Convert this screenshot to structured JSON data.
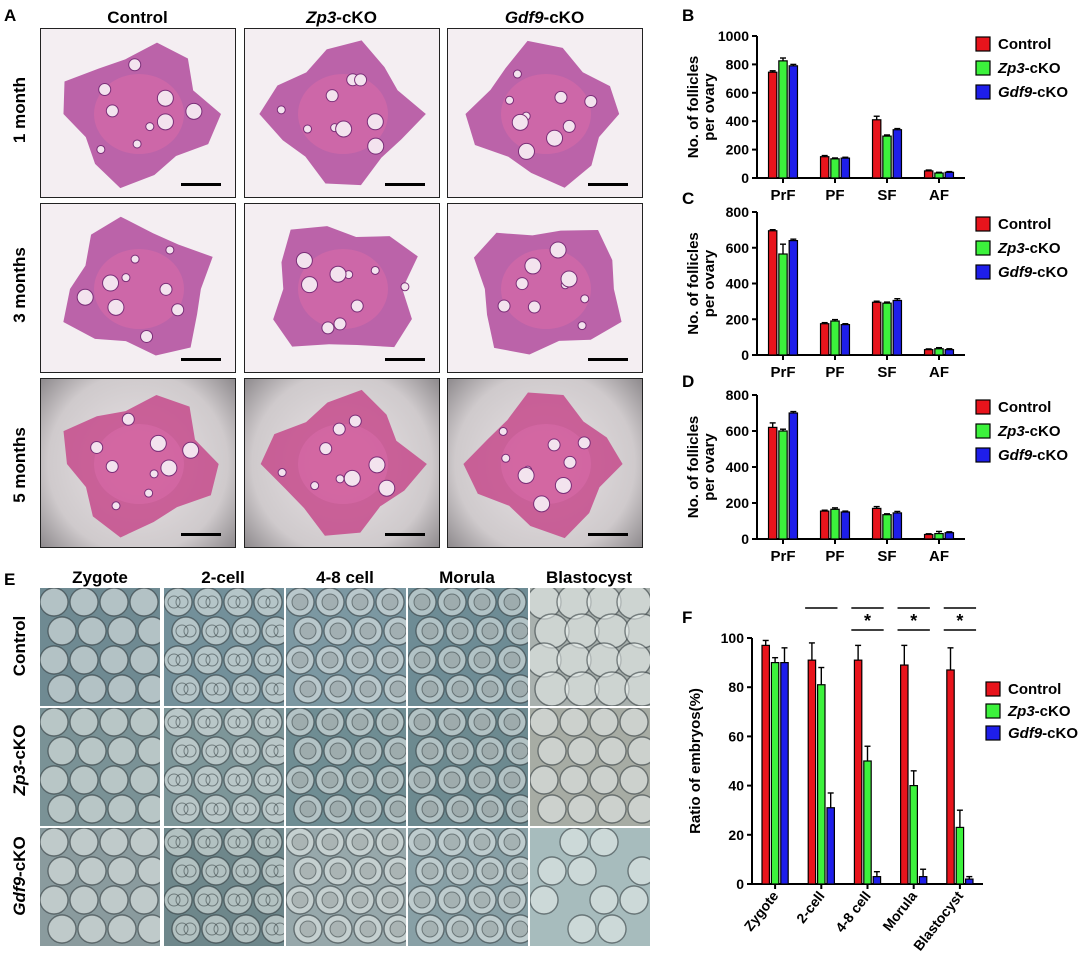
{
  "panels": {
    "A": "A",
    "B": "B",
    "C": "C",
    "D": "D",
    "E": "E",
    "F": "F"
  },
  "histology": {
    "columns": [
      {
        "italic": "",
        "rest": "Control"
      },
      {
        "italic": "Zp3",
        "rest": "-cKO"
      },
      {
        "italic": "Gdf9",
        "rest": "-cKO"
      }
    ],
    "rows": [
      "1 month",
      "3 months",
      "5 months"
    ]
  },
  "embryos": {
    "columns": [
      "Zygote",
      "2-cell",
      "4-8 cell",
      "Morula",
      "Blastocyst"
    ],
    "rows": [
      {
        "italic": "",
        "rest": "Control"
      },
      {
        "italic": "Zp3",
        "rest": "-cKO"
      },
      {
        "italic": "Gdf9",
        "rest": "-cKO"
      }
    ]
  },
  "legend": [
    {
      "italic": "",
      "rest": "Control",
      "color": "#e8141c"
    },
    {
      "italic": "Zp3",
      "rest": "-cKO",
      "color": "#3cf23c"
    },
    {
      "italic": "Gdf9",
      "rest": "-cKO",
      "color": "#1e1eea"
    }
  ],
  "chart_data": [
    {
      "panel": "B",
      "type": "bar",
      "categories": [
        "PrF",
        "PF",
        "SF",
        "AF"
      ],
      "ylabel": "No. of follicles per ovary",
      "ylim": [
        0,
        1000
      ],
      "yticks": [
        0,
        200,
        400,
        600,
        800,
        1000
      ],
      "series": [
        {
          "name": "Control",
          "values": [
            745,
            150,
            410,
            50
          ],
          "errors": [
            10,
            8,
            25,
            6
          ]
        },
        {
          "name": "Zp3-cKO",
          "values": [
            825,
            135,
            295,
            35
          ],
          "errors": [
            20,
            6,
            8,
            5
          ]
        },
        {
          "name": "Gdf9-cKO",
          "values": [
            790,
            140,
            340,
            40
          ],
          "errors": [
            10,
            6,
            8,
            5
          ]
        }
      ]
    },
    {
      "panel": "C",
      "type": "bar",
      "categories": [
        "PrF",
        "PF",
        "SF",
        "AF"
      ],
      "ylabel": "No. of follicles per ovary",
      "ylim": [
        0,
        800
      ],
      "yticks": [
        0,
        200,
        400,
        600,
        800
      ],
      "series": [
        {
          "name": "Control",
          "values": [
            695,
            175,
            295,
            30
          ],
          "errors": [
            6,
            6,
            6,
            4
          ]
        },
        {
          "name": "Zp3-cKO",
          "values": [
            565,
            190,
            290,
            35
          ],
          "errors": [
            55,
            8,
            6,
            6
          ]
        },
        {
          "name": "Gdf9-cKO",
          "values": [
            640,
            170,
            305,
            30
          ],
          "errors": [
            8,
            5,
            10,
            5
          ]
        }
      ]
    },
    {
      "panel": "D",
      "type": "bar",
      "categories": [
        "PrF",
        "PF",
        "SF",
        "AF"
      ],
      "ylabel": "No. of follicles per ovary",
      "ylim": [
        0,
        800
      ],
      "yticks": [
        0,
        200,
        400,
        600,
        800
      ],
      "series": [
        {
          "name": "Control",
          "values": [
            620,
            155,
            170,
            25
          ],
          "errors": [
            25,
            5,
            10,
            4
          ]
        },
        {
          "name": "Zp3-cKO",
          "values": [
            600,
            165,
            135,
            30
          ],
          "errors": [
            10,
            8,
            5,
            12
          ]
        },
        {
          "name": "Gdf9-cKO",
          "values": [
            700,
            150,
            145,
            35
          ],
          "errors": [
            8,
            5,
            8,
            5
          ]
        }
      ]
    },
    {
      "panel": "F",
      "type": "bar",
      "categories": [
        "Zygote",
        "2-cell",
        "4-8 cell",
        "Morula",
        "Blastocyst"
      ],
      "ylabel": "Ratio of embryos(%)",
      "ylim": [
        0,
        100
      ],
      "yticks": [
        0,
        20,
        40,
        60,
        80,
        100
      ],
      "series": [
        {
          "name": "Control",
          "values": [
            97,
            91,
            91,
            89,
            87
          ],
          "errors": [
            2,
            7,
            6,
            8,
            9
          ]
        },
        {
          "name": "Zp3-cKO",
          "values": [
            90,
            81,
            50,
            40,
            23
          ],
          "errors": [
            2,
            7,
            6,
            6,
            7
          ]
        },
        {
          "name": "Gdf9-cKO",
          "values": [
            90,
            31,
            3,
            3,
            2
          ],
          "errors": [
            6,
            6,
            2,
            3,
            1
          ]
        }
      ],
      "significance": [
        {
          "category": "2-cell",
          "from": 0,
          "to": 2,
          "level": 1,
          "label": "*"
        },
        {
          "category": "4-8 cell",
          "from": 0,
          "to": 1,
          "level": 1,
          "label": "*"
        },
        {
          "category": "4-8 cell",
          "from": 0,
          "to": 2,
          "level": 2,
          "label": "*"
        },
        {
          "category": "Morula",
          "from": 0,
          "to": 1,
          "level": 1,
          "label": "*"
        },
        {
          "category": "Morula",
          "from": 0,
          "to": 2,
          "level": 2,
          "label": "*"
        },
        {
          "category": "Blastocyst",
          "from": 0,
          "to": 1,
          "level": 1,
          "label": "*"
        },
        {
          "category": "Blastocyst",
          "from": 0,
          "to": 2,
          "level": 2,
          "label": "*"
        }
      ]
    }
  ]
}
